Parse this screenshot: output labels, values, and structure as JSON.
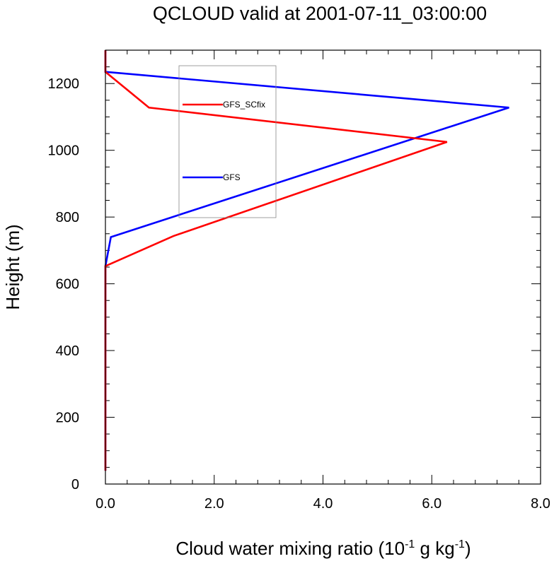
{
  "chart_data": {
    "type": "line",
    "title": "QCLOUD valid at 2001-07-11_03:00:00",
    "xlabel": {
      "main": "Cloud water mixing ratio (10",
      "exp1": "-1",
      "mid": " g kg",
      "exp2": "-1",
      "end": ")"
    },
    "ylabel": "Height (m)",
    "xlim": [
      0.0,
      8.0
    ],
    "ylim": [
      0,
      1300
    ],
    "xticks": [
      0.0,
      2.0,
      4.0,
      6.0,
      8.0
    ],
    "xtick_labels": [
      "0.0",
      "2.0",
      "4.0",
      "6.0",
      "8.0"
    ],
    "yticks": [
      0,
      200,
      400,
      600,
      800,
      1000,
      1200
    ],
    "ytick_labels": [
      "0",
      "200",
      "400",
      "600",
      "800",
      "1000",
      "1200"
    ],
    "grid": false,
    "legend_position": "upper-left inside plot",
    "series": [
      {
        "name": "GFS",
        "color": "#0000ff",
        "x": [
          0.0,
          0.0,
          0.0,
          0.0,
          0.0,
          0.0,
          0.0,
          0.0,
          0.0,
          0.0,
          0.0,
          0.0,
          0.0,
          0.0,
          0.0,
          0.1,
          7.42,
          0.0,
          0.0
        ],
        "y": [
          40,
          80,
          120,
          160,
          200,
          250,
          300,
          350,
          400,
          450,
          500,
          550,
          600,
          653,
          653,
          740,
          1128,
          1235,
          1300
        ]
      },
      {
        "name": "GFS_SCfix",
        "color": "#ff0000",
        "x": [
          0.0,
          0.0,
          0.0,
          0.0,
          0.0,
          0.0,
          0.0,
          0.0,
          0.0,
          0.0,
          0.0,
          0.0,
          0.0,
          0.0,
          1.25,
          6.28,
          0.8,
          0.0,
          0.0
        ],
        "y": [
          40,
          80,
          120,
          160,
          200,
          250,
          300,
          350,
          400,
          450,
          500,
          550,
          600,
          653,
          743,
          1025,
          1128,
          1235,
          1300
        ]
      }
    ]
  }
}
